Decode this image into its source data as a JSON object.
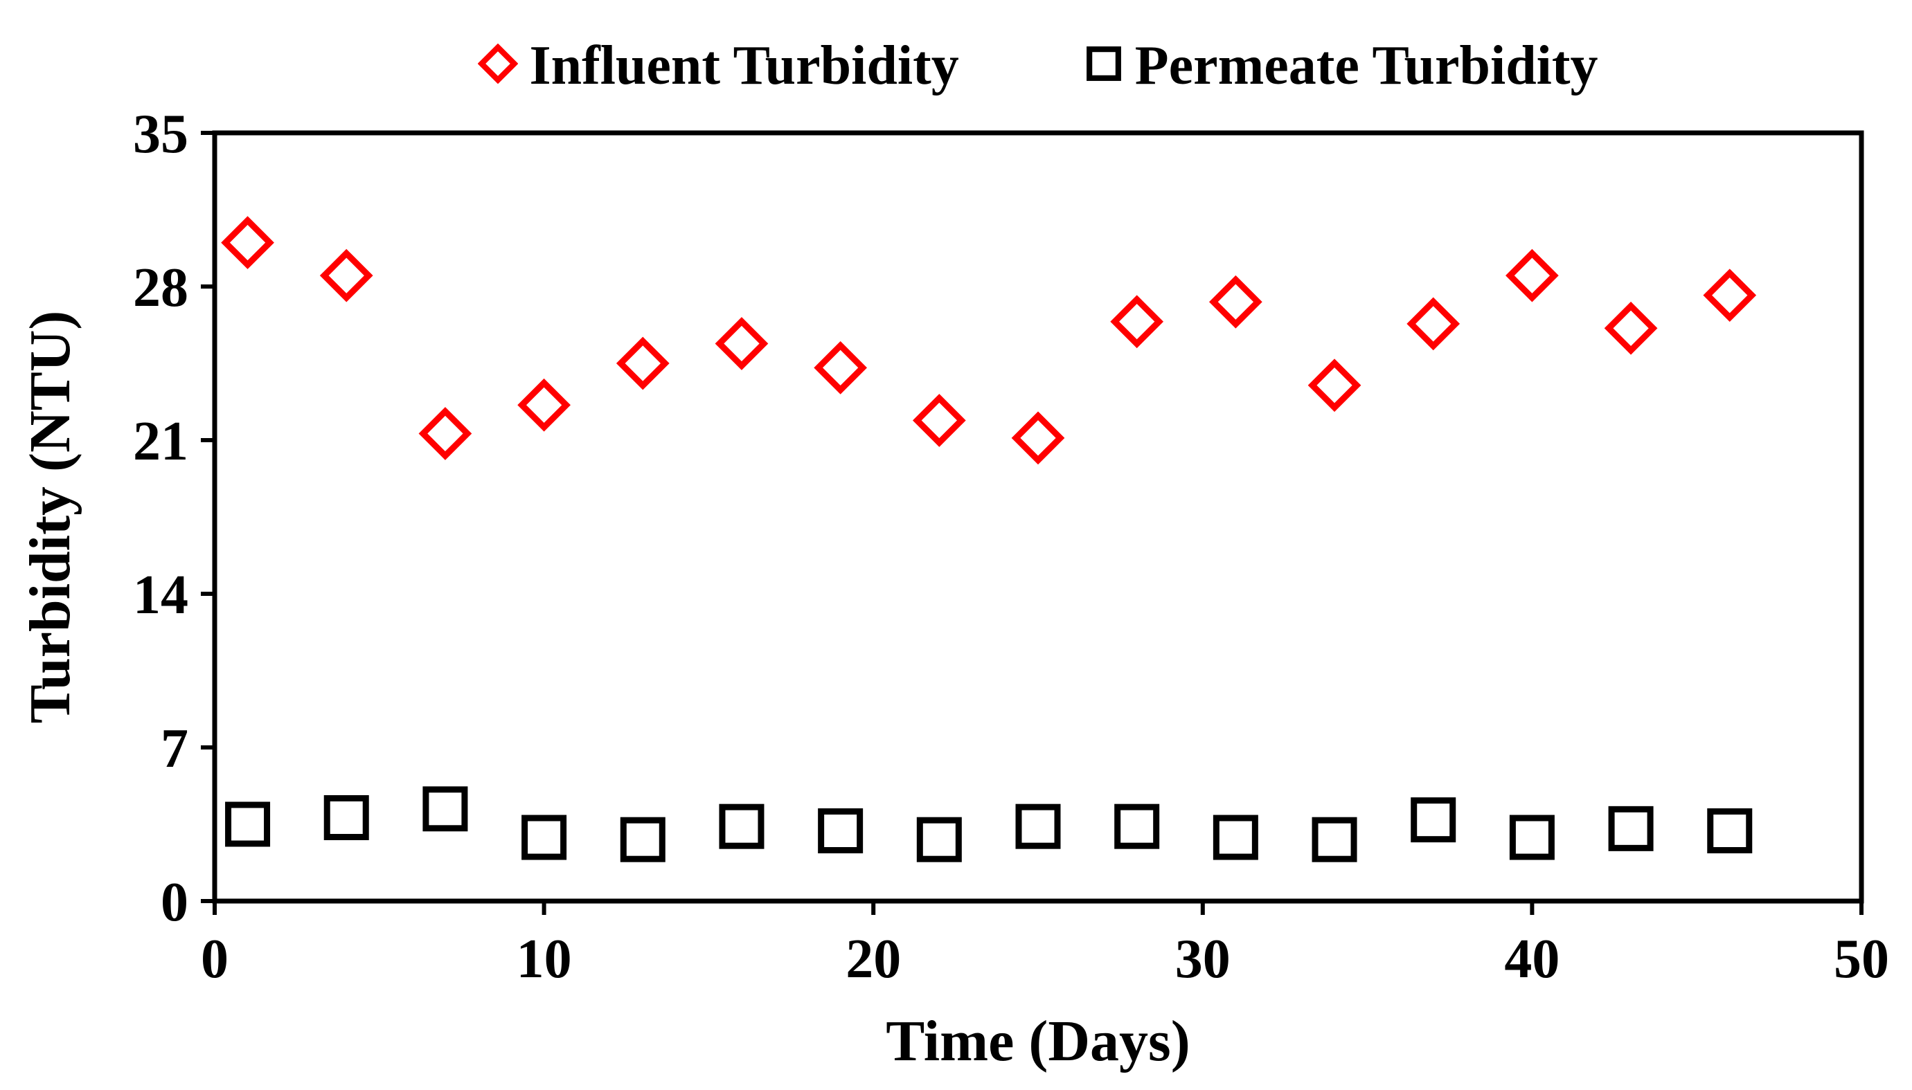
{
  "chart_data": {
    "type": "scatter",
    "title": "",
    "xlabel": "Time (Days)",
    "ylabel": "Turbidity (NTU)",
    "xlim": [
      0,
      50
    ],
    "ylim": [
      0,
      35
    ],
    "xticks": [
      0,
      10,
      20,
      30,
      40,
      50
    ],
    "yticks": [
      0,
      7,
      14,
      21,
      28,
      35
    ],
    "grid": false,
    "legend_position": "top",
    "series": [
      {
        "name": "Influent Turbidity",
        "marker": "diamond",
        "color": "#FF0000",
        "x": [
          1,
          4,
          7,
          10,
          13,
          16,
          19,
          22,
          25,
          28,
          31,
          34,
          37,
          40,
          43,
          46
        ],
        "y": [
          30.0,
          28.5,
          21.3,
          22.6,
          24.5,
          25.4,
          24.3,
          21.9,
          21.1,
          26.4,
          27.3,
          23.5,
          26.3,
          28.5,
          26.1,
          27.6
        ]
      },
      {
        "name": "Permeate Turbidity",
        "marker": "square",
        "color": "#000000",
        "x": [
          1,
          4,
          7,
          10,
          13,
          16,
          19,
          22,
          25,
          28,
          31,
          34,
          37,
          40,
          43,
          46
        ],
        "y": [
          3.5,
          3.8,
          4.2,
          2.9,
          2.8,
          3.4,
          3.2,
          2.8,
          3.4,
          3.4,
          2.9,
          2.8,
          3.7,
          2.9,
          3.3,
          3.2
        ]
      }
    ]
  }
}
